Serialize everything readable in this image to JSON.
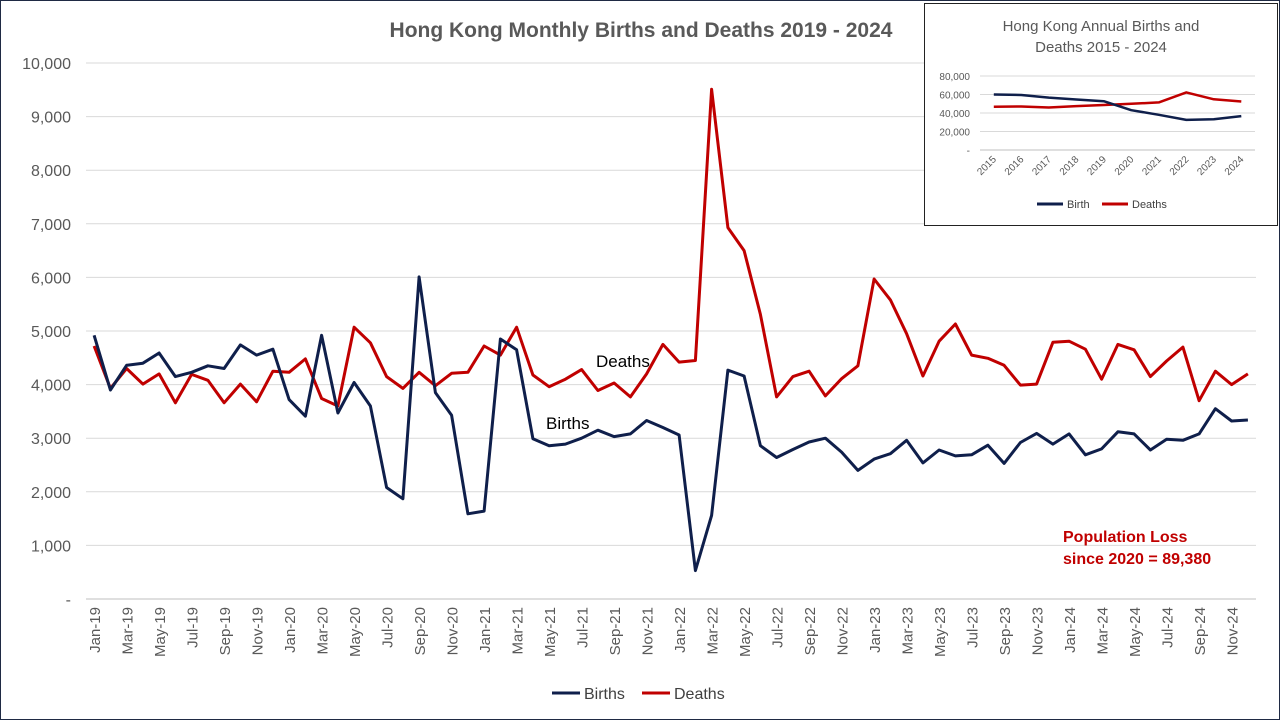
{
  "chart_data": [
    {
      "type": "line",
      "title": "Hong Kong Monthly Births and Deaths 2019 - 2024",
      "ylim": [
        0,
        10000
      ],
      "yticks": [
        0,
        1000,
        2000,
        3000,
        4000,
        5000,
        6000,
        7000,
        8000,
        9000,
        10000
      ],
      "ytick_labels": [
        "-",
        "1,000",
        "2,000",
        "3,000",
        "4,000",
        "5,000",
        "6,000",
        "7,000",
        "8,000",
        "9,000",
        "10,000"
      ],
      "x_tick_labels": [
        "Jan-19",
        "Mar-19",
        "May-19",
        "Jul-19",
        "Sep-19",
        "Nov-19",
        "Jan-20",
        "Mar-20",
        "May-20",
        "Jul-20",
        "Sep-20",
        "Nov-20",
        "Jan-21",
        "Mar-21",
        "May-21",
        "Jul-21",
        "Sep-21",
        "Nov-21",
        "Jan-22",
        "Mar-22",
        "May-22",
        "Jul-22",
        "Sep-22",
        "Nov-22",
        "Jan-23",
        "Mar-23",
        "May-23",
        "Jul-23",
        "Sep-23",
        "Nov-23",
        "Jan-24",
        "Mar-24",
        "May-24",
        "Jul-24",
        "Sep-24",
        "Nov-24"
      ],
      "grid": true,
      "legend": "bottom",
      "series": [
        {
          "name": "Births",
          "color": "#0f1f4b",
          "values": [
            4920,
            3900,
            4360,
            4400,
            4590,
            4150,
            4230,
            4350,
            4300,
            4740,
            4550,
            4660,
            3720,
            3410,
            4920,
            3470,
            4040,
            3600,
            2080,
            1870,
            6010,
            3850,
            3430,
            1590,
            1640,
            4850,
            4650,
            2990,
            2860,
            2890,
            3000,
            3150,
            3030,
            3080,
            3330,
            3200,
            3060,
            530,
            1560,
            4270,
            4160,
            2860,
            2640,
            2790,
            2930,
            3000,
            2740,
            2400,
            2610,
            2710,
            2960,
            2540,
            2780,
            2670,
            2690,
            2870,
            2530,
            2920,
            3090,
            2890,
            3080,
            2690,
            2800,
            3120,
            3080,
            2780,
            2980,
            2960,
            3080,
            3550,
            3320,
            3340
          ]
        },
        {
          "name": "Deaths",
          "color": "#c00000",
          "values": [
            4720,
            3930,
            4300,
            4010,
            4200,
            3660,
            4190,
            4080,
            3660,
            4010,
            3680,
            4250,
            4230,
            4480,
            3740,
            3600,
            5070,
            4780,
            4150,
            3930,
            4230,
            3980,
            4210,
            4230,
            4720,
            4550,
            5070,
            4180,
            3960,
            4100,
            4280,
            3890,
            4030,
            3770,
            4200,
            4750,
            4420,
            4450,
            9510,
            6930,
            6500,
            5310,
            3770,
            4150,
            4250,
            3790,
            4110,
            4350,
            5970,
            5580,
            4950,
            4160,
            4810,
            5130,
            4550,
            4490,
            4360,
            3990,
            4010,
            4790,
            4810,
            4660,
            4100,
            4750,
            4650,
            4150,
            4440,
            4700,
            3700,
            4250,
            4000,
            4200
          ]
        }
      ],
      "annotations": {
        "deaths_label": "Deaths",
        "births_label": "Births",
        "population_loss_line1": "Population Loss",
        "population_loss_line2": "since 2020 = 89,380"
      }
    },
    {
      "type": "line",
      "title_line1": "Hong Kong Annual Births and",
      "title_line2": "Deaths 2015 - 2024",
      "ylim": [
        0,
        80000
      ],
      "yticks": [
        0,
        20000,
        40000,
        60000,
        80000
      ],
      "ytick_labels": [
        "-",
        "20,000",
        "40,000",
        "60,000",
        "80,000"
      ],
      "categories": [
        "2015",
        "2016",
        "2017",
        "2018",
        "2019",
        "2020",
        "2021",
        "2022",
        "2023",
        "2024"
      ],
      "grid": true,
      "legend": "bottom",
      "series": [
        {
          "name": "Birth",
          "color": "#0f1f4b",
          "values": [
            60000,
            59500,
            56700,
            54600,
            52800,
            43000,
            38000,
            32500,
            33300,
            36700
          ]
        },
        {
          "name": "Deaths",
          "color": "#c00000",
          "values": [
            46800,
            47000,
            45900,
            47500,
            48700,
            50000,
            51500,
            62300,
            54800,
            52400
          ]
        }
      ]
    }
  ]
}
